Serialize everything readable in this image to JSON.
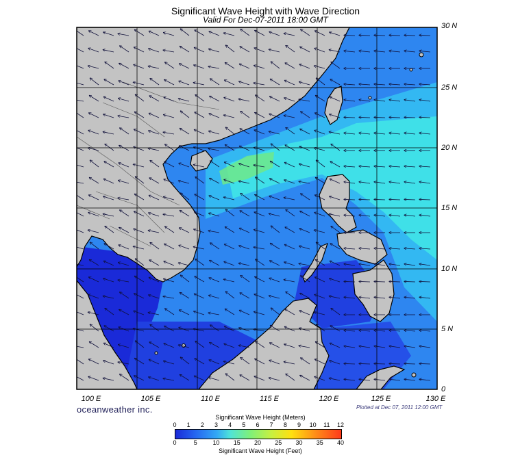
{
  "header": {
    "title": "Significant Wave Height with Wave Direction",
    "subtitle": "Valid For Dec-07-2011 18:00 GMT"
  },
  "map": {
    "region": "South China Sea",
    "lat_labels": [
      "30 N",
      "25 N",
      "20 N",
      "15 N",
      "10 N",
      "5 N",
      "0"
    ],
    "lon_labels": [
      "100 E",
      "105 E",
      "110 E",
      "115 E",
      "120 E",
      "125 E",
      "130 E"
    ],
    "land_color": "#c3c3c3",
    "coast_color": "#000000",
    "deep_wave_color": "#1a2ad8",
    "mid_wave_color": "#2e86f0",
    "high_wave_color": "#3fe0e8",
    "peak_wave_color": "#6fe88a",
    "dominant_wave_direction": "toward southwest (from northeast monsoon)"
  },
  "footer": {
    "brand": "oceanweather inc.",
    "plotted": "Plotted at Dec 07, 2011 12:00 GMT"
  },
  "colorbar": {
    "title_meters": "Significant Wave Height (Meters)",
    "title_feet": "Significant Wave Height (Feet)",
    "meters_ticks": [
      "0",
      "1",
      "2",
      "3",
      "4",
      "5",
      "6",
      "7",
      "8",
      "9",
      "10",
      "11",
      "12"
    ],
    "feet_ticks": [
      "0",
      "5",
      "10",
      "15",
      "20",
      "25",
      "30",
      "35",
      "40"
    ],
    "colors": [
      "#1a2ad8",
      "#2566f0",
      "#33a8f5",
      "#4fe3d8",
      "#7ef07a",
      "#c8f040",
      "#ffe010",
      "#ff8a18",
      "#ff3a1a"
    ]
  }
}
